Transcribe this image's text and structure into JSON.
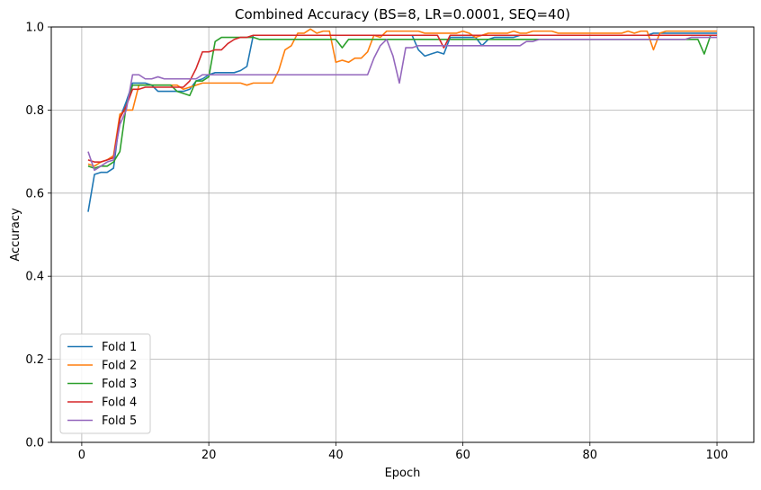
{
  "chart_data": {
    "type": "line",
    "title": "Combined Accuracy (BS=8, LR=0.0001, SEQ=40)",
    "xlabel": "Epoch",
    "ylabel": "Accuracy",
    "xlim": [
      -4.8,
      105.8
    ],
    "ylim": [
      0.0,
      1.0
    ],
    "xticks": [
      0,
      20,
      40,
      60,
      80,
      100
    ],
    "xtick_labels": [
      "0",
      "20",
      "40",
      "60",
      "80",
      "100"
    ],
    "yticks": [
      0.0,
      0.2,
      0.4,
      0.6,
      0.8,
      1.0
    ],
    "ytick_labels": [
      "0.0",
      "0.2",
      "0.4",
      "0.6",
      "0.8",
      "1.0"
    ],
    "grid": true,
    "legend_position": "lower-left",
    "x": [
      1,
      2,
      3,
      4,
      5,
      6,
      7,
      8,
      9,
      10,
      11,
      12,
      13,
      14,
      15,
      16,
      17,
      18,
      19,
      20,
      21,
      22,
      23,
      24,
      25,
      26,
      27,
      28,
      29,
      30,
      31,
      32,
      33,
      34,
      35,
      36,
      37,
      38,
      39,
      40,
      41,
      42,
      43,
      44,
      45,
      46,
      47,
      48,
      49,
      50,
      51,
      52,
      53,
      54,
      55,
      56,
      57,
      58,
      59,
      60,
      61,
      62,
      63,
      64,
      65,
      66,
      67,
      68,
      69,
      70,
      71,
      72,
      73,
      74,
      75,
      76,
      77,
      78,
      79,
      80,
      81,
      82,
      83,
      84,
      85,
      86,
      87,
      88,
      89,
      90,
      91,
      92,
      93,
      94,
      95,
      96,
      97,
      98,
      99,
      100
    ],
    "series": [
      {
        "name": "Fold 1",
        "color": "#1f77b4",
        "values": [
          0.555,
          0.645,
          0.65,
          0.65,
          0.66,
          0.78,
          0.82,
          0.865,
          0.865,
          0.865,
          0.86,
          0.845,
          0.845,
          0.845,
          0.845,
          0.845,
          0.85,
          0.87,
          0.875,
          0.885,
          0.89,
          0.89,
          0.89,
          0.89,
          0.895,
          0.905,
          0.98,
          0.98,
          0.98,
          0.98,
          0.98,
          0.98,
          0.98,
          0.98,
          0.98,
          0.98,
          0.98,
          0.98,
          0.98,
          0.98,
          0.98,
          0.98,
          0.98,
          0.98,
          0.98,
          0.98,
          0.98,
          0.98,
          0.98,
          0.98,
          0.98,
          0.98,
          0.945,
          0.93,
          0.935,
          0.94,
          0.935,
          0.975,
          0.975,
          0.975,
          0.975,
          0.975,
          0.955,
          0.97,
          0.975,
          0.975,
          0.975,
          0.975,
          0.98,
          0.98,
          0.98,
          0.98,
          0.98,
          0.98,
          0.98,
          0.98,
          0.98,
          0.98,
          0.98,
          0.98,
          0.98,
          0.98,
          0.98,
          0.98,
          0.98,
          0.98,
          0.98,
          0.98,
          0.98,
          0.985,
          0.985,
          0.985,
          0.985,
          0.985,
          0.985,
          0.985,
          0.985,
          0.985,
          0.985,
          0.985
        ]
      },
      {
        "name": "Fold 2",
        "color": "#ff7f0e",
        "values": [
          0.67,
          0.665,
          0.675,
          0.68,
          0.69,
          0.79,
          0.8,
          0.8,
          0.86,
          0.86,
          0.86,
          0.86,
          0.86,
          0.86,
          0.86,
          0.85,
          0.855,
          0.86,
          0.865,
          0.865,
          0.865,
          0.865,
          0.865,
          0.865,
          0.865,
          0.86,
          0.865,
          0.865,
          0.865,
          0.865,
          0.895,
          0.945,
          0.955,
          0.985,
          0.985,
          0.995,
          0.985,
          0.99,
          0.99,
          0.915,
          0.92,
          0.915,
          0.925,
          0.925,
          0.94,
          0.98,
          0.975,
          0.99,
          0.99,
          0.99,
          0.99,
          0.99,
          0.99,
          0.985,
          0.985,
          0.985,
          0.985,
          0.985,
          0.985,
          0.99,
          0.985,
          0.975,
          0.98,
          0.985,
          0.985,
          0.985,
          0.985,
          0.99,
          0.985,
          0.985,
          0.99,
          0.99,
          0.99,
          0.99,
          0.985,
          0.985,
          0.985,
          0.985,
          0.985,
          0.985,
          0.985,
          0.985,
          0.985,
          0.985,
          0.985,
          0.99,
          0.985,
          0.99,
          0.99,
          0.945,
          0.985,
          0.99,
          0.99,
          0.99,
          0.99,
          0.99,
          0.99,
          0.99,
          0.99,
          0.99
        ]
      },
      {
        "name": "Fold 3",
        "color": "#2ca02c",
        "values": [
          0.665,
          0.66,
          0.665,
          0.665,
          0.675,
          0.7,
          0.81,
          0.86,
          0.86,
          0.86,
          0.86,
          0.86,
          0.86,
          0.86,
          0.845,
          0.84,
          0.835,
          0.87,
          0.87,
          0.88,
          0.965,
          0.975,
          0.975,
          0.975,
          0.975,
          0.975,
          0.975,
          0.97,
          0.97,
          0.97,
          0.97,
          0.97,
          0.97,
          0.97,
          0.97,
          0.97,
          0.97,
          0.97,
          0.97,
          0.97,
          0.95,
          0.97,
          0.97,
          0.97,
          0.97,
          0.97,
          0.97,
          0.97,
          0.97,
          0.97,
          0.97,
          0.97,
          0.97,
          0.97,
          0.97,
          0.97,
          0.97,
          0.97,
          0.97,
          0.97,
          0.97,
          0.97,
          0.97,
          0.97,
          0.97,
          0.97,
          0.97,
          0.97,
          0.97,
          0.97,
          0.97,
          0.97,
          0.97,
          0.97,
          0.97,
          0.97,
          0.97,
          0.97,
          0.97,
          0.97,
          0.97,
          0.97,
          0.97,
          0.97,
          0.97,
          0.97,
          0.97,
          0.97,
          0.97,
          0.97,
          0.97,
          0.97,
          0.97,
          0.97,
          0.97,
          0.97,
          0.97,
          0.935,
          0.98,
          0.98
        ]
      },
      {
        "name": "Fold 4",
        "color": "#d62728",
        "values": [
          0.68,
          0.675,
          0.675,
          0.68,
          0.685,
          0.78,
          0.81,
          0.85,
          0.85,
          0.855,
          0.855,
          0.855,
          0.855,
          0.855,
          0.855,
          0.855,
          0.87,
          0.9,
          0.94,
          0.94,
          0.945,
          0.945,
          0.96,
          0.97,
          0.975,
          0.975,
          0.98,
          0.98,
          0.98,
          0.98,
          0.98,
          0.98,
          0.98,
          0.98,
          0.98,
          0.98,
          0.98,
          0.98,
          0.98,
          0.98,
          0.98,
          0.98,
          0.98,
          0.98,
          0.98,
          0.98,
          0.98,
          0.98,
          0.98,
          0.98,
          0.98,
          0.98,
          0.98,
          0.98,
          0.98,
          0.98,
          0.95,
          0.98,
          0.98,
          0.98,
          0.98,
          0.98,
          0.98,
          0.98,
          0.98,
          0.98,
          0.98,
          0.98,
          0.98,
          0.98,
          0.98,
          0.98,
          0.98,
          0.98,
          0.98,
          0.98,
          0.98,
          0.98,
          0.98,
          0.98,
          0.98,
          0.98,
          0.98,
          0.98,
          0.98,
          0.98,
          0.98,
          0.98,
          0.98,
          0.98,
          0.98,
          0.98,
          0.98,
          0.98,
          0.98,
          0.98,
          0.98,
          0.98,
          0.98,
          0.98
        ]
      },
      {
        "name": "Fold 5",
        "color": "#9467bd",
        "values": [
          0.7,
          0.655,
          0.665,
          0.675,
          0.68,
          0.765,
          0.8,
          0.885,
          0.885,
          0.875,
          0.875,
          0.88,
          0.875,
          0.875,
          0.875,
          0.875,
          0.875,
          0.875,
          0.885,
          0.885,
          0.885,
          0.885,
          0.885,
          0.885,
          0.885,
          0.885,
          0.885,
          0.885,
          0.885,
          0.885,
          0.885,
          0.885,
          0.885,
          0.885,
          0.885,
          0.885,
          0.885,
          0.885,
          0.885,
          0.885,
          0.885,
          0.885,
          0.885,
          0.885,
          0.885,
          0.925,
          0.955,
          0.97,
          0.93,
          0.865,
          0.95,
          0.95,
          0.955,
          0.955,
          0.955,
          0.955,
          0.955,
          0.955,
          0.955,
          0.955,
          0.955,
          0.955,
          0.955,
          0.955,
          0.955,
          0.955,
          0.955,
          0.955,
          0.955,
          0.965,
          0.965,
          0.97,
          0.97,
          0.97,
          0.97,
          0.97,
          0.97,
          0.97,
          0.97,
          0.97,
          0.97,
          0.97,
          0.97,
          0.97,
          0.97,
          0.97,
          0.97,
          0.97,
          0.97,
          0.97,
          0.97,
          0.97,
          0.97,
          0.97,
          0.97,
          0.975,
          0.975,
          0.975,
          0.975,
          0.975
        ]
      }
    ]
  }
}
